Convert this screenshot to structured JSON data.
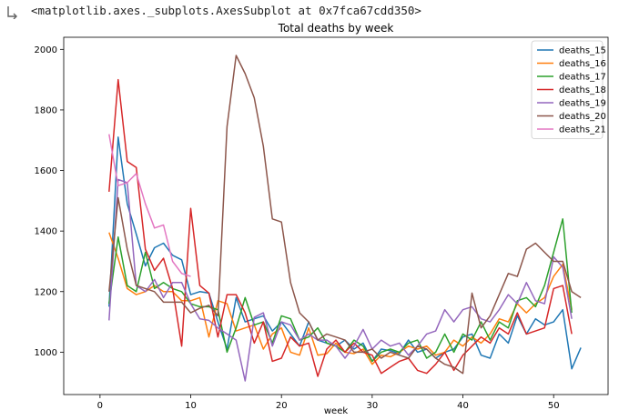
{
  "output": {
    "repr_text": "<matplotlib.axes._subplots.AxesSubplot at 0x7fca67cdd350>",
    "output_icon": "output-arrow-icon"
  },
  "chart_data": {
    "type": "line",
    "title": "Total deaths by week",
    "xlabel": "week",
    "ylabel": "",
    "xlim": [
      -4,
      56
    ],
    "ylim": [
      860,
      2040
    ],
    "xticks": [
      0,
      10,
      20,
      30,
      40,
      50
    ],
    "yticks": [
      1000,
      1200,
      1400,
      1600,
      1800,
      2000
    ],
    "grid": false,
    "legend_position": "top-right",
    "series": [
      {
        "name": "deaths_15",
        "color": "#1f77b4",
        "x": [
          1,
          2,
          3,
          4,
          5,
          6,
          7,
          8,
          9,
          10,
          11,
          12,
          13,
          14,
          15,
          16,
          17,
          18,
          19,
          20,
          21,
          22,
          23,
          24,
          25,
          26,
          27,
          28,
          29,
          30,
          31,
          32,
          33,
          34,
          35,
          36,
          37,
          38,
          39,
          40,
          41,
          42,
          43,
          44,
          45,
          46,
          47,
          48,
          49,
          50,
          51,
          52,
          53
        ],
        "y": [
          1150,
          1710,
          1490,
          1390,
          1285,
          1345,
          1360,
          1320,
          1305,
          1190,
          1200,
          1195,
          1100,
          1010,
          1180,
          1100,
          1110,
          1120,
          1070,
          1100,
          1060,
          1020,
          1100,
          1040,
          1030,
          1020,
          1040,
          1010,
          1030,
          970,
          1010,
          1005,
          995,
          1040,
          1000,
          1010,
          980,
          1000,
          1010,
          1050,
          1060,
          990,
          980,
          1060,
          1030,
          1120,
          1060,
          1110,
          1090,
          1100,
          1140,
          945,
          1015
        ]
      },
      {
        "name": "deaths_16",
        "color": "#ff7f0e",
        "x": [
          1,
          2,
          3,
          4,
          5,
          6,
          7,
          8,
          9,
          10,
          11,
          12,
          13,
          14,
          15,
          16,
          17,
          18,
          19,
          20,
          21,
          22,
          23,
          24,
          25,
          26,
          27,
          28,
          29,
          30,
          31,
          32,
          33,
          34,
          35,
          36,
          37,
          38,
          39,
          40,
          41,
          42,
          43,
          44,
          45,
          46,
          47,
          48,
          49,
          50,
          51,
          52
        ],
        "y": [
          1395,
          1310,
          1210,
          1190,
          1200,
          1220,
          1200,
          1200,
          1170,
          1170,
          1180,
          1050,
          1170,
          1160,
          1070,
          1080,
          1090,
          1010,
          1060,
          1080,
          1000,
          990,
          1080,
          990,
          995,
          1030,
          1000,
          995,
          1010,
          960,
          990,
          985,
          1000,
          1020,
          1010,
          1020,
          990,
          1000,
          1040,
          1020,
          1050,
          1030,
          1060,
          1110,
          1100,
          1160,
          1130,
          1160,
          1180,
          1250,
          1290,
          1140
        ]
      },
      {
        "name": "deaths_17",
        "color": "#2ca02c",
        "x": [
          1,
          2,
          3,
          4,
          5,
          6,
          7,
          8,
          9,
          10,
          11,
          12,
          13,
          14,
          15,
          16,
          17,
          18,
          19,
          20,
          21,
          22,
          23,
          24,
          25,
          26,
          27,
          28,
          29,
          30,
          31,
          32,
          33,
          34,
          35,
          36,
          37,
          38,
          39,
          40,
          41,
          42,
          43,
          44,
          45,
          46,
          47,
          48,
          49,
          50,
          51,
          52
        ],
        "y": [
          1160,
          1380,
          1220,
          1200,
          1330,
          1210,
          1230,
          1210,
          1200,
          1160,
          1150,
          1150,
          1140,
          1000,
          1080,
          1180,
          1090,
          1100,
          1030,
          1120,
          1110,
          1040,
          1050,
          1080,
          1030,
          1020,
          1000,
          1040,
          1020,
          970,
          1000,
          1010,
          1000,
          1030,
          1040,
          980,
          1000,
          1060,
          1000,
          1060,
          1040,
          1100,
          1040,
          1100,
          1080,
          1170,
          1180,
          1150,
          1220,
          1330,
          1440,
          1130
        ]
      },
      {
        "name": "deaths_18",
        "color": "#d62728",
        "x": [
          1,
          2,
          3,
          4,
          5,
          6,
          7,
          8,
          9,
          10,
          11,
          12,
          13,
          14,
          15,
          16,
          17,
          18,
          19,
          20,
          21,
          22,
          23,
          24,
          25,
          26,
          27,
          28,
          29,
          30,
          31,
          32,
          33,
          34,
          35,
          36,
          37,
          38,
          39,
          40,
          41,
          42,
          43,
          44,
          45,
          46,
          47,
          48,
          49,
          50,
          51,
          52
        ],
        "y": [
          1530,
          1900,
          1630,
          1610,
          1340,
          1270,
          1310,
          1210,
          1020,
          1475,
          1220,
          1195,
          1050,
          1190,
          1190,
          1130,
          1030,
          1100,
          970,
          980,
          1050,
          1020,
          1030,
          920,
          1010,
          1040,
          1000,
          1030,
          1000,
          990,
          930,
          950,
          970,
          980,
          940,
          930,
          960,
          1000,
          940,
          990,
          1020,
          1050,
          1030,
          1080,
          1060,
          1130,
          1060,
          1070,
          1080,
          1210,
          1220,
          1060
        ]
      },
      {
        "name": "deaths_19",
        "color": "#9467bd",
        "x": [
          1,
          2,
          3,
          4,
          5,
          6,
          7,
          8,
          9,
          10,
          11,
          12,
          13,
          14,
          15,
          16,
          17,
          18,
          19,
          20,
          21,
          22,
          23,
          24,
          25,
          26,
          27,
          28,
          29,
          30,
          31,
          32,
          33,
          34,
          35,
          36,
          37,
          38,
          39,
          40,
          41,
          42,
          43,
          44,
          45,
          46,
          47,
          48,
          49,
          50,
          51,
          52
        ],
        "y": [
          1105,
          1570,
          1560,
          1220,
          1200,
          1240,
          1180,
          1230,
          1230,
          1160,
          1110,
          1105,
          1080,
          1060,
          1040,
          905,
          1115,
          1130,
          1020,
          1100,
          1090,
          1040,
          1060,
          1040,
          1040,
          1020,
          980,
          1020,
          1075,
          1010,
          1040,
          1020,
          1030,
          990,
          1020,
          1060,
          1070,
          1140,
          1100,
          1140,
          1150,
          1110,
          1100,
          1140,
          1190,
          1160,
          1230,
          1170,
          1160,
          1315,
          1280,
          1110
        ]
      },
      {
        "name": "deaths_20",
        "color": "#8c564b",
        "x": [
          1,
          2,
          3,
          4,
          5,
          6,
          7,
          8,
          9,
          10,
          11,
          12,
          13,
          14,
          15,
          16,
          17,
          18,
          19,
          20,
          21,
          22,
          23,
          24,
          25,
          26,
          27,
          28,
          29,
          30,
          31,
          32,
          33,
          34,
          35,
          36,
          37,
          38,
          39,
          40,
          41,
          42,
          43,
          44,
          45,
          46,
          47,
          48,
          49,
          50,
          51,
          52,
          53
        ],
        "y": [
          1200,
          1510,
          1340,
          1220,
          1210,
          1200,
          1165,
          1165,
          1165,
          1130,
          1145,
          1155,
          1120,
          1745,
          1980,
          1920,
          1840,
          1680,
          1440,
          1430,
          1230,
          1130,
          1100,
          1040,
          1060,
          1050,
          1040,
          1000,
          1000,
          1010,
          980,
          1000,
          990,
          980,
          1020,
          1010,
          980,
          960,
          950,
          930,
          1195,
          1080,
          1120,
          1190,
          1260,
          1250,
          1340,
          1360,
          1330,
          1300,
          1300,
          1200,
          1180
        ]
      },
      {
        "name": "deaths_21",
        "color": "#e377c2",
        "x": [
          1,
          2,
          3,
          4,
          5,
          6,
          7,
          8,
          9,
          10
        ],
        "y": [
          1720,
          1550,
          1560,
          1590,
          1490,
          1410,
          1420,
          1300,
          1260,
          1250
        ]
      }
    ]
  }
}
